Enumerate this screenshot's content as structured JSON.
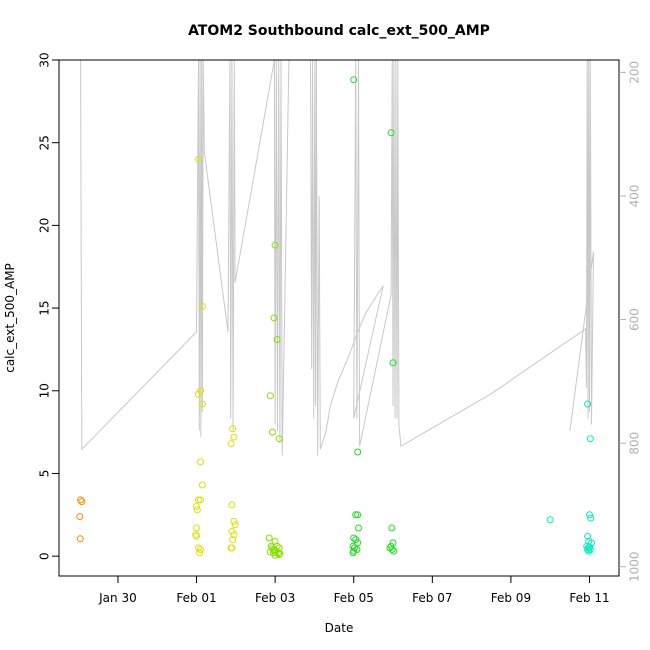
{
  "chart_data": {
    "type": "scatter",
    "title": "ATOM2 Southbound calc_ext_500_AMP",
    "xlabel": "Date",
    "ylabel": "calc_ext_500_AMP",
    "x_unit": "days since Jan 30",
    "xlim": [
      -1.5,
      12.75
    ],
    "ylim": [
      -1.2,
      30
    ],
    "x_ticks": [
      {
        "value": 0,
        "label": "Jan 30"
      },
      {
        "value": 2,
        "label": "Feb 01"
      },
      {
        "value": 4,
        "label": "Feb 03"
      },
      {
        "value": 6,
        "label": "Feb 05"
      },
      {
        "value": 8,
        "label": "Feb 07"
      },
      {
        "value": 10,
        "label": "Feb 09"
      },
      {
        "value": 12,
        "label": "Feb 11"
      }
    ],
    "y_ticks": [
      0,
      5,
      10,
      15,
      20,
      25,
      30
    ],
    "secondary_axis": {
      "color": "#b0b0b0",
      "reversed": true,
      "ylim": [
        1015,
        180
      ],
      "ticks": [
        200,
        400,
        600,
        800,
        1000
      ]
    },
    "series": [
      {
        "name": "points_orange",
        "color": "#ff8c00",
        "points": [
          [
            -0.95,
            3.4
          ],
          [
            -0.92,
            3.3
          ],
          [
            -0.97,
            2.4
          ],
          [
            -0.96,
            1.05
          ]
        ]
      },
      {
        "name": "points_yellow",
        "color": "#e0e000",
        "points": [
          [
            2.05,
            24.0
          ],
          [
            2.15,
            15.1
          ],
          [
            2.1,
            10.0
          ],
          [
            2.05,
            9.8
          ],
          [
            2.15,
            9.2
          ],
          [
            2.1,
            5.7
          ],
          [
            2.15,
            4.3
          ],
          [
            2.05,
            3.4
          ],
          [
            2.1,
            3.4
          ],
          [
            2.0,
            3.0
          ],
          [
            2.02,
            2.8
          ],
          [
            2.0,
            1.7
          ],
          [
            1.98,
            1.3
          ],
          [
            2.0,
            1.2
          ],
          [
            2.05,
            0.5
          ],
          [
            2.1,
            0.4
          ],
          [
            2.08,
            0.2
          ],
          [
            2.92,
            7.7
          ],
          [
            2.95,
            7.2
          ],
          [
            2.88,
            6.8
          ],
          [
            2.9,
            3.1
          ],
          [
            2.95,
            2.1
          ],
          [
            2.98,
            1.9
          ],
          [
            2.9,
            1.5
          ],
          [
            2.95,
            1.3
          ],
          [
            2.92,
            1.0
          ],
          [
            2.88,
            0.5
          ],
          [
            2.9,
            0.5
          ]
        ]
      },
      {
        "name": "points_light_green",
        "color": "#88e000",
        "points": [
          [
            4.0,
            18.8
          ],
          [
            4.05,
            13.1
          ],
          [
            4.1,
            7.1
          ],
          [
            4.0,
            0.9
          ],
          [
            4.05,
            0.6
          ],
          [
            4.1,
            0.5
          ],
          [
            3.98,
            0.4
          ],
          [
            4.02,
            0.3
          ],
          [
            4.08,
            0.2
          ],
          [
            4.1,
            0.1
          ],
          [
            4.0,
            0.05
          ],
          [
            4.12,
            0.15
          ],
          [
            3.88,
            9.7
          ],
          [
            3.93,
            7.5
          ],
          [
            3.97,
            14.4
          ],
          [
            3.85,
            1.1
          ],
          [
            3.9,
            0.6
          ],
          [
            3.92,
            0.5
          ],
          [
            3.95,
            0.4
          ],
          [
            3.98,
            0.3
          ],
          [
            3.88,
            0.25
          ],
          [
            3.96,
            0.2
          ]
        ]
      },
      {
        "name": "points_green",
        "color": "#22dd22",
        "points": [
          [
            6.0,
            28.8
          ],
          [
            6.1,
            6.3
          ],
          [
            6.05,
            2.5
          ],
          [
            6.1,
            2.5
          ],
          [
            6.12,
            1.7
          ],
          [
            6.0,
            1.1
          ],
          [
            6.05,
            1.0
          ],
          [
            6.1,
            0.8
          ],
          [
            5.98,
            0.6
          ],
          [
            6.02,
            0.5
          ],
          [
            6.08,
            0.4
          ],
          [
            6.0,
            0.3
          ],
          [
            5.98,
            0.2
          ],
          [
            6.95,
            25.6
          ],
          [
            7.0,
            11.7
          ],
          [
            6.97,
            1.7
          ],
          [
            7.0,
            0.8
          ],
          [
            6.95,
            0.6
          ],
          [
            6.92,
            0.5
          ],
          [
            6.98,
            0.4
          ],
          [
            7.02,
            0.3
          ]
        ]
      },
      {
        "name": "points_teal",
        "color": "#00eebb",
        "points": [
          [
            11.0,
            2.2
          ],
          [
            11.95,
            9.2
          ],
          [
            12.02,
            7.1
          ],
          [
            12.0,
            2.5
          ],
          [
            12.03,
            2.3
          ],
          [
            11.95,
            1.2
          ],
          [
            11.98,
            0.9
          ],
          [
            12.05,
            0.8
          ],
          [
            11.93,
            0.6
          ],
          [
            12.0,
            0.55
          ],
          [
            11.97,
            0.5
          ],
          [
            11.95,
            0.4
          ],
          [
            11.98,
            0.3
          ],
          [
            12.02,
            0.4
          ]
        ]
      }
    ],
    "secondary_line": {
      "name": "grey_trace",
      "color": "#c8c8c8",
      "points": [
        [
          -0.95,
          180
        ],
        [
          -0.92,
          810
        ],
        [
          2.0,
          620
        ],
        [
          2.05,
          180
        ],
        [
          2.07,
          780
        ],
        [
          2.09,
          180
        ],
        [
          2.11,
          790
        ],
        [
          2.13,
          180
        ],
        [
          2.15,
          750
        ],
        [
          2.17,
          180
        ],
        [
          2.2,
          330
        ],
        [
          2.8,
          620
        ],
        [
          2.85,
          180
        ],
        [
          2.87,
          760
        ],
        [
          2.9,
          180
        ],
        [
          2.93,
          780
        ],
        [
          2.96,
          180
        ],
        [
          2.98,
          540
        ],
        [
          3.98,
          180
        ],
        [
          4.0,
          770
        ],
        [
          4.03,
          180
        ],
        [
          4.06,
          780
        ],
        [
          4.09,
          180
        ],
        [
          4.12,
          800
        ],
        [
          4.15,
          180
        ],
        [
          4.18,
          820
        ],
        [
          4.35,
          180
        ],
        [
          4.9,
          180
        ],
        [
          4.93,
          680
        ],
        [
          4.95,
          180
        ],
        [
          4.98,
          760
        ],
        [
          5.01,
          180
        ],
        [
          5.03,
          740
        ],
        [
          5.05,
          180
        ],
        [
          5.08,
          820
        ],
        [
          5.12,
          400
        ],
        [
          5.15,
          810
        ],
        [
          5.3,
          780
        ],
        [
          5.4,
          740
        ],
        [
          5.6,
          700
        ],
        [
          5.9,
          655
        ],
        [
          6.1,
          620
        ],
        [
          6.3,
          590
        ],
        [
          6.75,
          545
        ],
        [
          6.0,
          760
        ],
        [
          6.05,
          180
        ],
        [
          6.08,
          760
        ],
        [
          6.12,
          180
        ],
        [
          6.15,
          805
        ],
        [
          6.95,
          560
        ],
        [
          6.98,
          180
        ],
        [
          7.0,
          740
        ],
        [
          7.02,
          180
        ],
        [
          7.05,
          760
        ],
        [
          7.07,
          180
        ],
        [
          7.1,
          760
        ],
        [
          7.12,
          180
        ],
        [
          7.15,
          770
        ],
        [
          7.2,
          805
        ],
        [
          9.5,
          720
        ],
        [
          11.9,
          615
        ],
        [
          11.92,
          710
        ],
        [
          11.94,
          180
        ],
        [
          11.96,
          760
        ],
        [
          11.98,
          180
        ],
        [
          12.0,
          750
        ],
        [
          12.02,
          180
        ],
        [
          12.05,
          770
        ],
        [
          12.1,
          490
        ],
        [
          11.5,
          780
        ]
      ]
    }
  }
}
